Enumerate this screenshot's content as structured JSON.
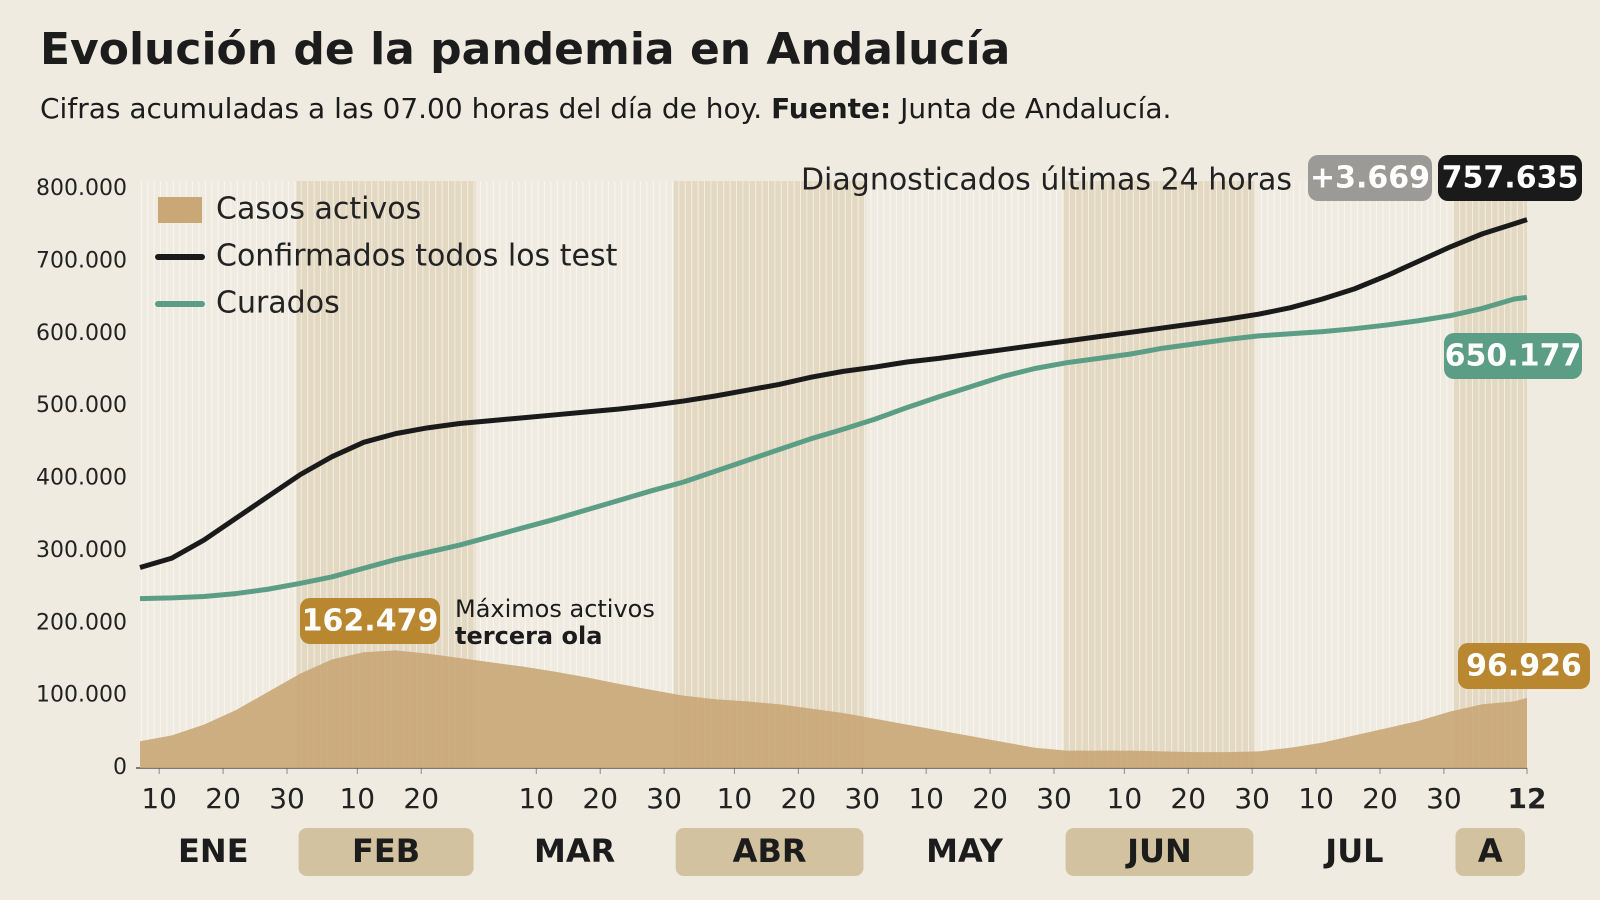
{
  "chart_data": {
    "type": "line",
    "title": "Evolución de la pandemia en Andalucía",
    "subtitle": "Cifras acumuladas a las 07.00 horas del día de hoy.",
    "source_label": "Fuente:",
    "source": "Junta de Andalucía.",
    "x": [
      "01-07",
      "01-12",
      "01-17",
      "01-22",
      "01-27",
      "02-01",
      "02-06",
      "02-11",
      "02-16",
      "02-21",
      "02-26",
      "03-03",
      "03-08",
      "03-13",
      "03-18",
      "03-23",
      "03-28",
      "04-02",
      "04-07",
      "04-12",
      "04-17",
      "04-22",
      "04-27",
      "05-02",
      "05-07",
      "05-12",
      "05-17",
      "05-22",
      "05-27",
      "06-01",
      "06-06",
      "06-11",
      "06-16",
      "06-21",
      "06-26",
      "07-01",
      "07-06",
      "07-11",
      "07-16",
      "07-21",
      "07-26",
      "07-31",
      "08-05",
      "08-10",
      "08-12"
    ],
    "series": [
      {
        "name": "Casos activos",
        "type": "area",
        "color": "#c9a777",
        "values": [
          37000,
          45000,
          60000,
          80000,
          105000,
          130000,
          150000,
          160000,
          162479,
          158000,
          152000,
          146000,
          140000,
          133000,
          125000,
          116000,
          108000,
          100000,
          95000,
          92000,
          88000,
          82000,
          76000,
          68000,
          60000,
          52000,
          44000,
          36000,
          28000,
          24000,
          24000,
          24000,
          23000,
          22000,
          22000,
          23000,
          28000,
          35000,
          45000,
          55000,
          65000,
          78000,
          88000,
          92000,
          96926
        ]
      },
      {
        "name": "Confirmados todos los test",
        "type": "line",
        "color": "#1a1a1a",
        "values": [
          277000,
          290000,
          315000,
          345000,
          375000,
          405000,
          430000,
          450000,
          462000,
          470000,
          476000,
          480000,
          484000,
          488000,
          492000,
          496000,
          501000,
          507000,
          514000,
          522000,
          530000,
          540000,
          548000,
          554000,
          561000,
          566000,
          572000,
          578000,
          584000,
          590000,
          596000,
          602000,
          608000,
          614000,
          620000,
          627000,
          636000,
          648000,
          662000,
          680000,
          700000,
          720000,
          738000,
          752000,
          757635
        ]
      },
      {
        "name": "Curados",
        "type": "line",
        "color": "#5b9e85",
        "values": [
          234000,
          235000,
          237000,
          241000,
          247000,
          255000,
          264000,
          276000,
          288000,
          298000,
          308000,
          320000,
          332000,
          344000,
          357000,
          370000,
          383000,
          395000,
          410000,
          425000,
          440000,
          455000,
          468000,
          482000,
          498000,
          513000,
          527000,
          541000,
          552000,
          560000,
          566000,
          572000,
          580000,
          586000,
          592000,
          597000,
          600000,
          603000,
          607000,
          612000,
          618000,
          625000,
          635000,
          648000,
          650177
        ]
      }
    ],
    "ylim": [
      0,
      800000
    ],
    "yticks": [
      0,
      {
        "value": 100000,
        "label": "100.000"
      },
      {
        "value": 200000,
        "label": "200.000"
      },
      {
        "value": 300000,
        "label": "300.000"
      },
      {
        "value": 400000,
        "label": "400.000"
      },
      {
        "value": 500000,
        "label": "500.000"
      },
      {
        "value": 600000,
        "label": "600.000"
      },
      {
        "value": 700000,
        "label": "700.000"
      },
      {
        "value": 800000,
        "label": "800.000"
      }
    ],
    "xticks": [
      {
        "value": "01-10",
        "label": "10"
      },
      {
        "value": "01-20",
        "label": "20"
      },
      {
        "value": "01-30",
        "label": "30"
      },
      {
        "value": "02-10",
        "label": "10"
      },
      {
        "value": "02-20",
        "label": "20"
      },
      {
        "value": "03-10",
        "label": "10"
      },
      {
        "value": "03-20",
        "label": "20"
      },
      {
        "value": "03-30",
        "label": "30"
      },
      {
        "value": "04-10",
        "label": "10"
      },
      {
        "value": "04-20",
        "label": "20"
      },
      {
        "value": "04-30",
        "label": "30"
      },
      {
        "value": "05-10",
        "label": "10"
      },
      {
        "value": "05-20",
        "label": "20"
      },
      {
        "value": "05-30",
        "label": "30"
      },
      {
        "value": "06-10",
        "label": "10"
      },
      {
        "value": "06-20",
        "label": "20"
      },
      {
        "value": "06-30",
        "label": "30"
      },
      {
        "value": "07-10",
        "label": "10"
      },
      {
        "value": "07-20",
        "label": "20"
      },
      {
        "value": "07-30",
        "label": "30"
      },
      {
        "value": "08-12",
        "label": "12"
      }
    ],
    "month_labels": [
      "ENE",
      "FEB",
      "MAR",
      "ABR",
      "MAY",
      "JUN",
      "JUL",
      "A"
    ],
    "annotations": {
      "diagnosed_text": "Diagnosticados últimas 24 horas",
      "new_cases": {
        "value": 3669,
        "label": "+3.669"
      },
      "total_confirmed": {
        "value": 757635,
        "label": "757.635"
      },
      "total_recovered": {
        "value": 650177,
        "label": "650.177"
      },
      "current_active": {
        "value": 96926,
        "label": "96.926"
      },
      "peak_active": {
        "value": 162479,
        "label": "162.479"
      },
      "peak_text_1": "Máximos activos",
      "peak_text_2": "tercera ola"
    }
  }
}
